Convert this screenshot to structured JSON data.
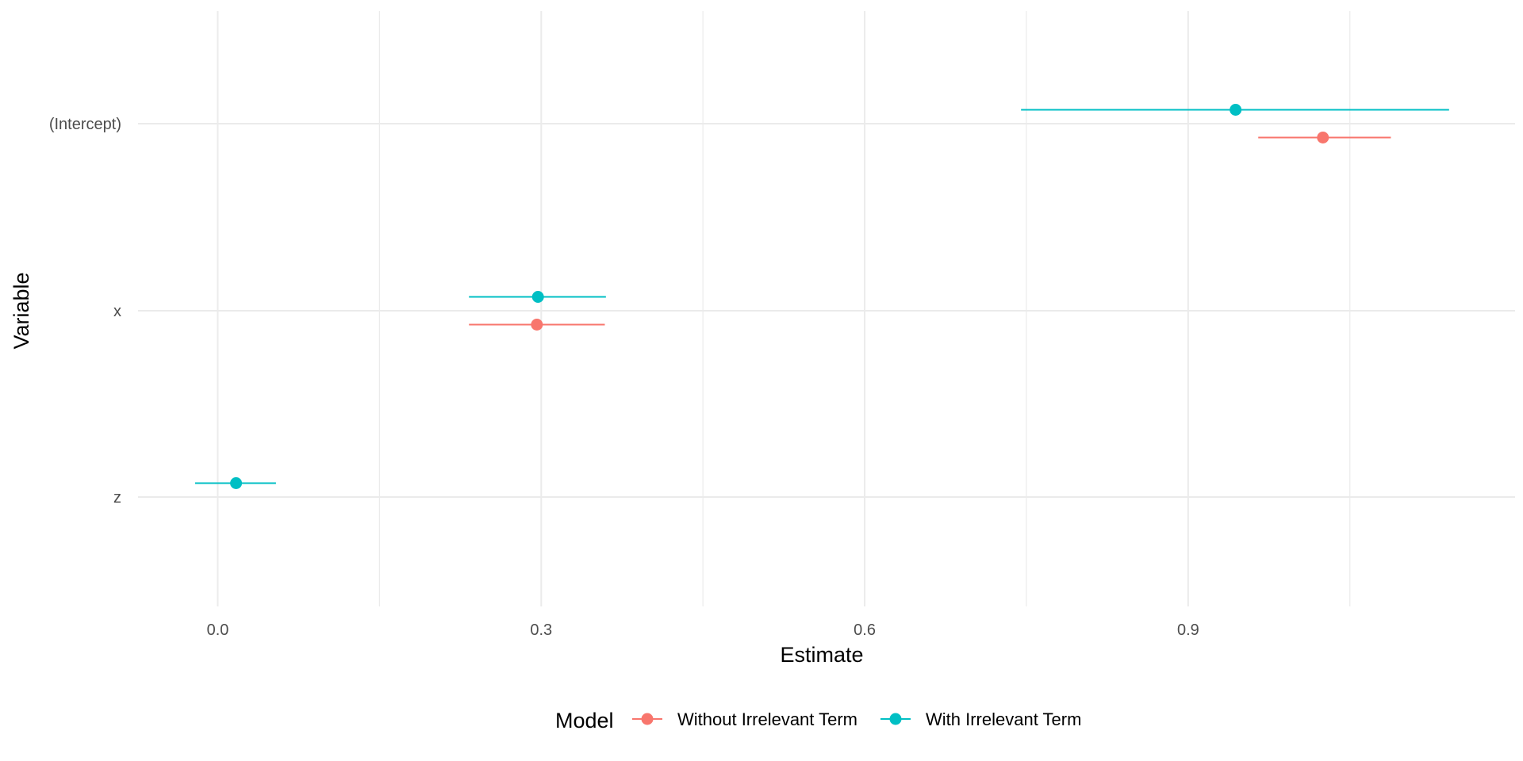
{
  "chart_data": {
    "type": "scatter",
    "subtype": "coefficient-plot-with-intervals",
    "xlabel": "Estimate",
    "ylabel": "Variable",
    "xlim": [
      -0.12,
      1.19
    ],
    "x_ticks": [
      0.0,
      0.3,
      0.6,
      0.9
    ],
    "x_tick_labels": [
      "0.0",
      "0.3",
      "0.6",
      "0.9"
    ],
    "x_minor_gridlines": [
      0.15,
      0.45,
      0.75,
      1.05
    ],
    "categories": [
      "(Intercept)",
      "x",
      "z"
    ],
    "grid": true,
    "legend": {
      "title": "Model",
      "position": "bottom"
    },
    "series": [
      {
        "name": "Without Irrelevant Term",
        "color": "#F8766D",
        "points": [
          {
            "category": "(Intercept)",
            "estimate": 1.025,
            "lower": 0.965,
            "upper": 1.088
          },
          {
            "category": "x",
            "estimate": 0.296,
            "lower": 0.233,
            "upper": 0.359
          }
        ]
      },
      {
        "name": "With Irrelevant Term",
        "color": "#00BFC4",
        "points": [
          {
            "category": "(Intercept)",
            "estimate": 0.944,
            "lower": 0.745,
            "upper": 1.142
          },
          {
            "category": "x",
            "estimate": 0.297,
            "lower": 0.233,
            "upper": 0.36
          },
          {
            "category": "z",
            "estimate": 0.017,
            "lower": -0.021,
            "upper": 0.054
          }
        ]
      }
    ]
  }
}
